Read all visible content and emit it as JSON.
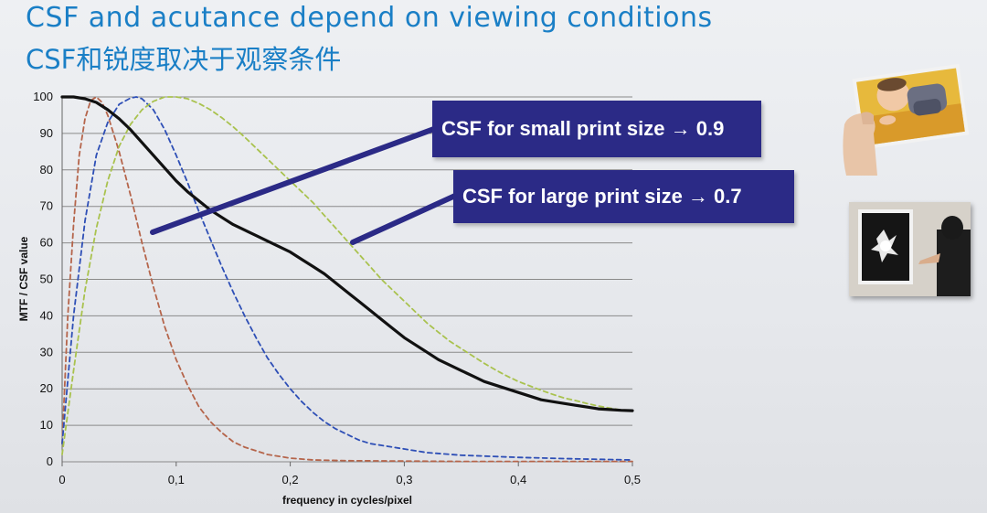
{
  "header": {
    "title_en": "CSF and acutance depend on viewing conditions",
    "title_cn": "CSF和锐度取决于观察条件"
  },
  "callouts": {
    "small": "CSF for small print size → 0.9",
    "large": "CSF for large print size → 0.7"
  },
  "colors": {
    "title": "#1a7fc6",
    "callout_bg": "#2b2a86",
    "mtf": "#111111",
    "csf_red": "#b5654b",
    "csf_blue": "#2e4fb6",
    "csf_green": "#a9c24e"
  },
  "images": {
    "small_print": "hand-holding-baby-photo",
    "large_print": "person-viewing-large-framed-print"
  },
  "chart_data": {
    "type": "line",
    "xlabel": "frequency in cycles/pixel",
    "ylabel": "MTF / CSF value",
    "xlim": [
      0,
      0.5
    ],
    "ylim": [
      0,
      100
    ],
    "grid": true,
    "x_ticks": [
      "0",
      "0,1",
      "0,2",
      "0,3",
      "0,4",
      "0,5"
    ],
    "y_ticks": [
      "0",
      "10",
      "20",
      "30",
      "40",
      "50",
      "60",
      "70",
      "80",
      "90",
      "100"
    ],
    "series": [
      {
        "name": "MTF",
        "style": "solid",
        "x": [
          0,
          0.01,
          0.02,
          0.03,
          0.04,
          0.05,
          0.06,
          0.07,
          0.08,
          0.09,
          0.1,
          0.11,
          0.12,
          0.13,
          0.14,
          0.15,
          0.16,
          0.17,
          0.18,
          0.19,
          0.2,
          0.21,
          0.22,
          0.23,
          0.24,
          0.25,
          0.26,
          0.27,
          0.28,
          0.29,
          0.3,
          0.31,
          0.32,
          0.33,
          0.34,
          0.35,
          0.36,
          0.37,
          0.38,
          0.39,
          0.4,
          0.41,
          0.42,
          0.43,
          0.44,
          0.45,
          0.46,
          0.47,
          0.48,
          0.49,
          0.5
        ],
        "y": [
          100,
          100,
          99.5,
          98.5,
          96.5,
          94,
          91,
          87.5,
          84,
          80.5,
          77,
          74,
          71.5,
          69,
          67,
          65,
          63.5,
          62,
          60.5,
          59,
          57.5,
          55.5,
          53.5,
          51.5,
          49,
          46.5,
          44,
          41.5,
          39,
          36.5,
          34,
          32,
          30,
          28,
          26.5,
          25,
          23.5,
          22,
          21,
          20,
          19,
          18,
          17,
          16.5,
          16,
          15.5,
          15,
          14.5,
          14.3,
          14.1,
          14
        ]
      },
      {
        "name": "CSF (red dashed)",
        "style": "dashed",
        "x": [
          0,
          0.005,
          0.01,
          0.015,
          0.02,
          0.025,
          0.03,
          0.035,
          0.04,
          0.045,
          0.05,
          0.06,
          0.07,
          0.08,
          0.09,
          0.1,
          0.11,
          0.12,
          0.13,
          0.14,
          0.15,
          0.16,
          0.17,
          0.18,
          0.19,
          0.2,
          0.22,
          0.25,
          0.3,
          0.35,
          0.4,
          0.45,
          0.5
        ],
        "y": [
          5,
          40,
          65,
          84,
          94,
          99,
          100,
          98.5,
          95,
          90,
          85,
          73,
          60,
          48,
          37,
          28,
          21,
          15,
          11,
          8,
          5.5,
          4,
          3,
          2,
          1.5,
          1,
          0.5,
          0.3,
          0.2,
          0.1,
          0.1,
          0.1,
          0.1
        ]
      },
      {
        "name": "CSF (blue dashed)",
        "style": "dashed",
        "x": [
          0,
          0.01,
          0.02,
          0.03,
          0.04,
          0.05,
          0.06,
          0.065,
          0.07,
          0.08,
          0.09,
          0.1,
          0.11,
          0.12,
          0.13,
          0.14,
          0.15,
          0.16,
          0.17,
          0.18,
          0.19,
          0.2,
          0.21,
          0.22,
          0.23,
          0.24,
          0.25,
          0.26,
          0.27,
          0.28,
          0.3,
          0.32,
          0.35,
          0.4,
          0.45,
          0.5
        ],
        "y": [
          5,
          40,
          66,
          84,
          93,
          98,
          99.7,
          100,
          99.5,
          96.5,
          91,
          84,
          76.5,
          68.5,
          61,
          53.5,
          46.5,
          40,
          34,
          28.5,
          24,
          20,
          16.5,
          13.5,
          11,
          9,
          7.5,
          6,
          5,
          4.5,
          3.5,
          2.5,
          1.8,
          1.2,
          0.8,
          0.5
        ]
      },
      {
        "name": "CSF (green dashed)",
        "style": "dashed",
        "x": [
          0,
          0.01,
          0.02,
          0.03,
          0.04,
          0.05,
          0.06,
          0.07,
          0.08,
          0.09,
          0.1,
          0.11,
          0.12,
          0.13,
          0.14,
          0.15,
          0.16,
          0.17,
          0.18,
          0.19,
          0.2,
          0.21,
          0.22,
          0.23,
          0.24,
          0.25,
          0.26,
          0.27,
          0.28,
          0.29,
          0.3,
          0.31,
          0.32,
          0.33,
          0.34,
          0.35,
          0.36,
          0.37,
          0.38,
          0.39,
          0.4,
          0.41,
          0.42,
          0.43,
          0.44,
          0.45,
          0.46,
          0.47,
          0.48,
          0.49,
          0.5
        ],
        "y": [
          2,
          25,
          47,
          64,
          77,
          86.5,
          92.5,
          96.5,
          98.8,
          100,
          100,
          99.5,
          98.2,
          96.5,
          94.3,
          91.8,
          89,
          86,
          83,
          80,
          77,
          74,
          71,
          67.5,
          64,
          60.5,
          57,
          53.5,
          50,
          47,
          44,
          41,
          38,
          35.5,
          33,
          31,
          29,
          27,
          25.2,
          23.5,
          22,
          20.8,
          19.6,
          18.5,
          17.5,
          16.8,
          16,
          15.3,
          14.7,
          14.2,
          14
        ]
      }
    ]
  }
}
